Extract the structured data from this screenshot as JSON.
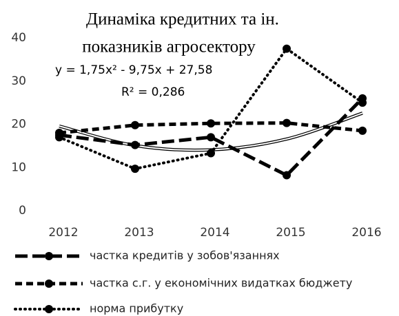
{
  "chart_data": {
    "type": "line",
    "title": [
      "Динаміка кредитних та  ін.",
      "показників агросектору"
    ],
    "categories": [
      "2012",
      "2013",
      "2014",
      "2015",
      "2016"
    ],
    "series": [
      {
        "name": "частка кредитів у зобов'язаннях",
        "color": "#000000",
        "dash": "18,7",
        "values": [
          17.5,
          15.2,
          17,
          8.2,
          26
        ]
      },
      {
        "name": "частка с.г. у економічних видатках бюджету",
        "color": "#000000",
        "dash": "10,6",
        "values": [
          18,
          19.8,
          20.2,
          20.3,
          18.5
        ]
      },
      {
        "name": "норма прибутку",
        "color": "#000000",
        "dash": "1,6",
        "values": [
          17,
          9.7,
          13.3,
          37.5,
          25
        ]
      }
    ],
    "trendline": {
      "values": [
        19.58,
        15.08,
        14.08,
        16.58,
        22.58
      ]
    },
    "annotations": [
      "y = 1,75x² - 9,75x + 27,58",
      "R² = 0,286"
    ],
    "ylim": [
      0,
      40
    ],
    "yticks": [
      0,
      10,
      20,
      30,
      40
    ],
    "grid": false
  }
}
